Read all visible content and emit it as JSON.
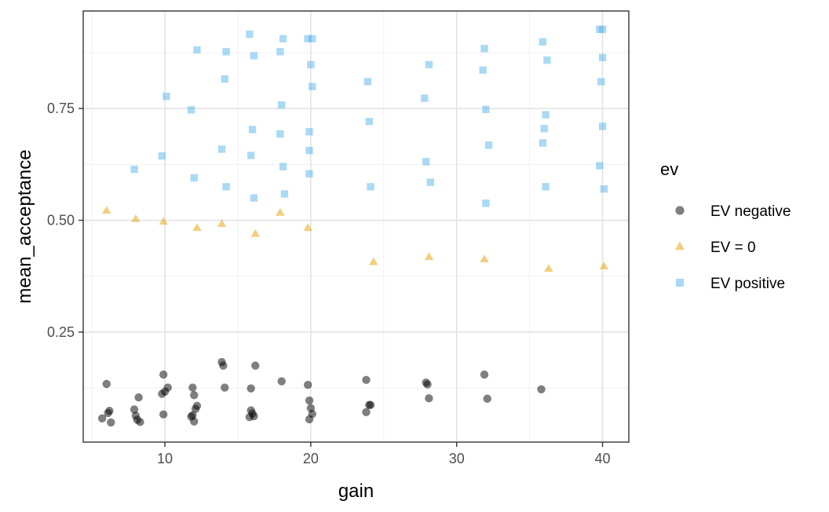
{
  "chart_data": {
    "type": "scatter",
    "xlabel": "gain",
    "ylabel": "mean_acceptance",
    "xlim": [
      4.4,
      41.8
    ],
    "ylim": [
      0.004,
      0.968
    ],
    "x_ticks": [
      10,
      20,
      30,
      40
    ],
    "x_tick_labels": [
      "10",
      "20",
      "30",
      "40"
    ],
    "y_ticks": [
      0.25,
      0.5,
      0.75
    ],
    "y_tick_labels": [
      "0.25",
      "0.50",
      "0.75"
    ],
    "grid": true,
    "legend": {
      "title": "ev",
      "position": "right"
    },
    "series": [
      {
        "name": "EV negative",
        "shape": "circle",
        "color": "#000000",
        "points": [
          [
            6.0,
            0.134
          ],
          [
            5.7,
            0.057
          ],
          [
            6.1,
            0.069
          ],
          [
            6.2,
            0.074
          ],
          [
            6.3,
            0.048
          ],
          [
            7.9,
            0.077
          ],
          [
            8.0,
            0.063
          ],
          [
            8.2,
            0.104
          ],
          [
            8.3,
            0.049
          ],
          [
            8.1,
            0.054
          ],
          [
            9.9,
            0.155
          ],
          [
            9.8,
            0.112
          ],
          [
            10.2,
            0.126
          ],
          [
            9.9,
            0.066
          ],
          [
            10.0,
            0.117
          ],
          [
            11.9,
            0.126
          ],
          [
            12.0,
            0.109
          ],
          [
            12.1,
            0.078
          ],
          [
            12.2,
            0.085
          ],
          [
            11.9,
            0.064
          ],
          [
            12.0,
            0.05
          ],
          [
            11.8,
            0.061
          ],
          [
            13.9,
            0.183
          ],
          [
            14.0,
            0.175
          ],
          [
            14.1,
            0.126
          ],
          [
            15.9,
            0.075
          ],
          [
            15.8,
            0.06
          ],
          [
            16.0,
            0.068
          ],
          [
            16.1,
            0.062
          ],
          [
            15.9,
            0.124
          ],
          [
            16.2,
            0.175
          ],
          [
            18.0,
            0.14
          ],
          [
            19.8,
            0.132
          ],
          [
            19.9,
            0.097
          ],
          [
            20.0,
            0.08
          ],
          [
            19.9,
            0.055
          ],
          [
            20.1,
            0.067
          ],
          [
            23.8,
            0.143
          ],
          [
            24.0,
            0.087
          ],
          [
            24.1,
            0.087
          ],
          [
            23.8,
            0.071
          ],
          [
            27.9,
            0.137
          ],
          [
            28.0,
            0.133
          ],
          [
            28.1,
            0.102
          ],
          [
            31.9,
            0.155
          ],
          [
            32.1,
            0.101
          ],
          [
            35.8,
            0.122
          ]
        ]
      },
      {
        "name": "EV = 0",
        "shape": "triangle",
        "color": "#E69F00",
        "points": [
          [
            6.0,
            0.522
          ],
          [
            8.0,
            0.503
          ],
          [
            9.9,
            0.497
          ],
          [
            12.2,
            0.483
          ],
          [
            13.9,
            0.492
          ],
          [
            16.2,
            0.47
          ],
          [
            17.9,
            0.517
          ],
          [
            19.8,
            0.483
          ],
          [
            24.3,
            0.407
          ],
          [
            28.1,
            0.418
          ],
          [
            31.9,
            0.413
          ],
          [
            36.3,
            0.392
          ],
          [
            40.1,
            0.397
          ]
        ]
      },
      {
        "name": "EV positive",
        "shape": "square",
        "color": "#56B4E9",
        "points": [
          [
            7.9,
            0.614
          ],
          [
            9.8,
            0.644
          ],
          [
            10.1,
            0.777
          ],
          [
            11.8,
            0.747
          ],
          [
            12.0,
            0.595
          ],
          [
            12.2,
            0.881
          ],
          [
            13.9,
            0.659
          ],
          [
            14.1,
            0.816
          ],
          [
            14.2,
            0.877
          ],
          [
            14.2,
            0.575
          ],
          [
            15.8,
            0.916
          ],
          [
            16.0,
            0.703
          ],
          [
            15.9,
            0.645
          ],
          [
            16.1,
            0.868
          ],
          [
            16.1,
            0.55
          ],
          [
            17.9,
            0.877
          ],
          [
            18.0,
            0.758
          ],
          [
            18.1,
            0.906
          ],
          [
            17.9,
            0.693
          ],
          [
            18.1,
            0.62
          ],
          [
            18.2,
            0.559
          ],
          [
            19.8,
            0.906
          ],
          [
            20.1,
            0.906
          ],
          [
            20.0,
            0.848
          ],
          [
            20.1,
            0.799
          ],
          [
            19.9,
            0.698
          ],
          [
            19.9,
            0.656
          ],
          [
            19.9,
            0.604
          ],
          [
            23.9,
            0.81
          ],
          [
            24.0,
            0.721
          ],
          [
            24.1,
            0.575
          ],
          [
            27.8,
            0.773
          ],
          [
            28.1,
            0.848
          ],
          [
            27.9,
            0.631
          ],
          [
            28.2,
            0.585
          ],
          [
            31.8,
            0.836
          ],
          [
            31.9,
            0.884
          ],
          [
            32.0,
            0.748
          ],
          [
            32.2,
            0.668
          ],
          [
            32.0,
            0.538
          ],
          [
            35.9,
            0.899
          ],
          [
            36.2,
            0.858
          ],
          [
            36.1,
            0.736
          ],
          [
            36.0,
            0.705
          ],
          [
            35.9,
            0.673
          ],
          [
            36.1,
            0.575
          ],
          [
            39.8,
            0.927
          ],
          [
            40.0,
            0.927
          ],
          [
            40.0,
            0.864
          ],
          [
            39.9,
            0.81
          ],
          [
            40.0,
            0.71
          ],
          [
            39.8,
            0.622
          ],
          [
            40.1,
            0.57
          ]
        ]
      }
    ]
  }
}
